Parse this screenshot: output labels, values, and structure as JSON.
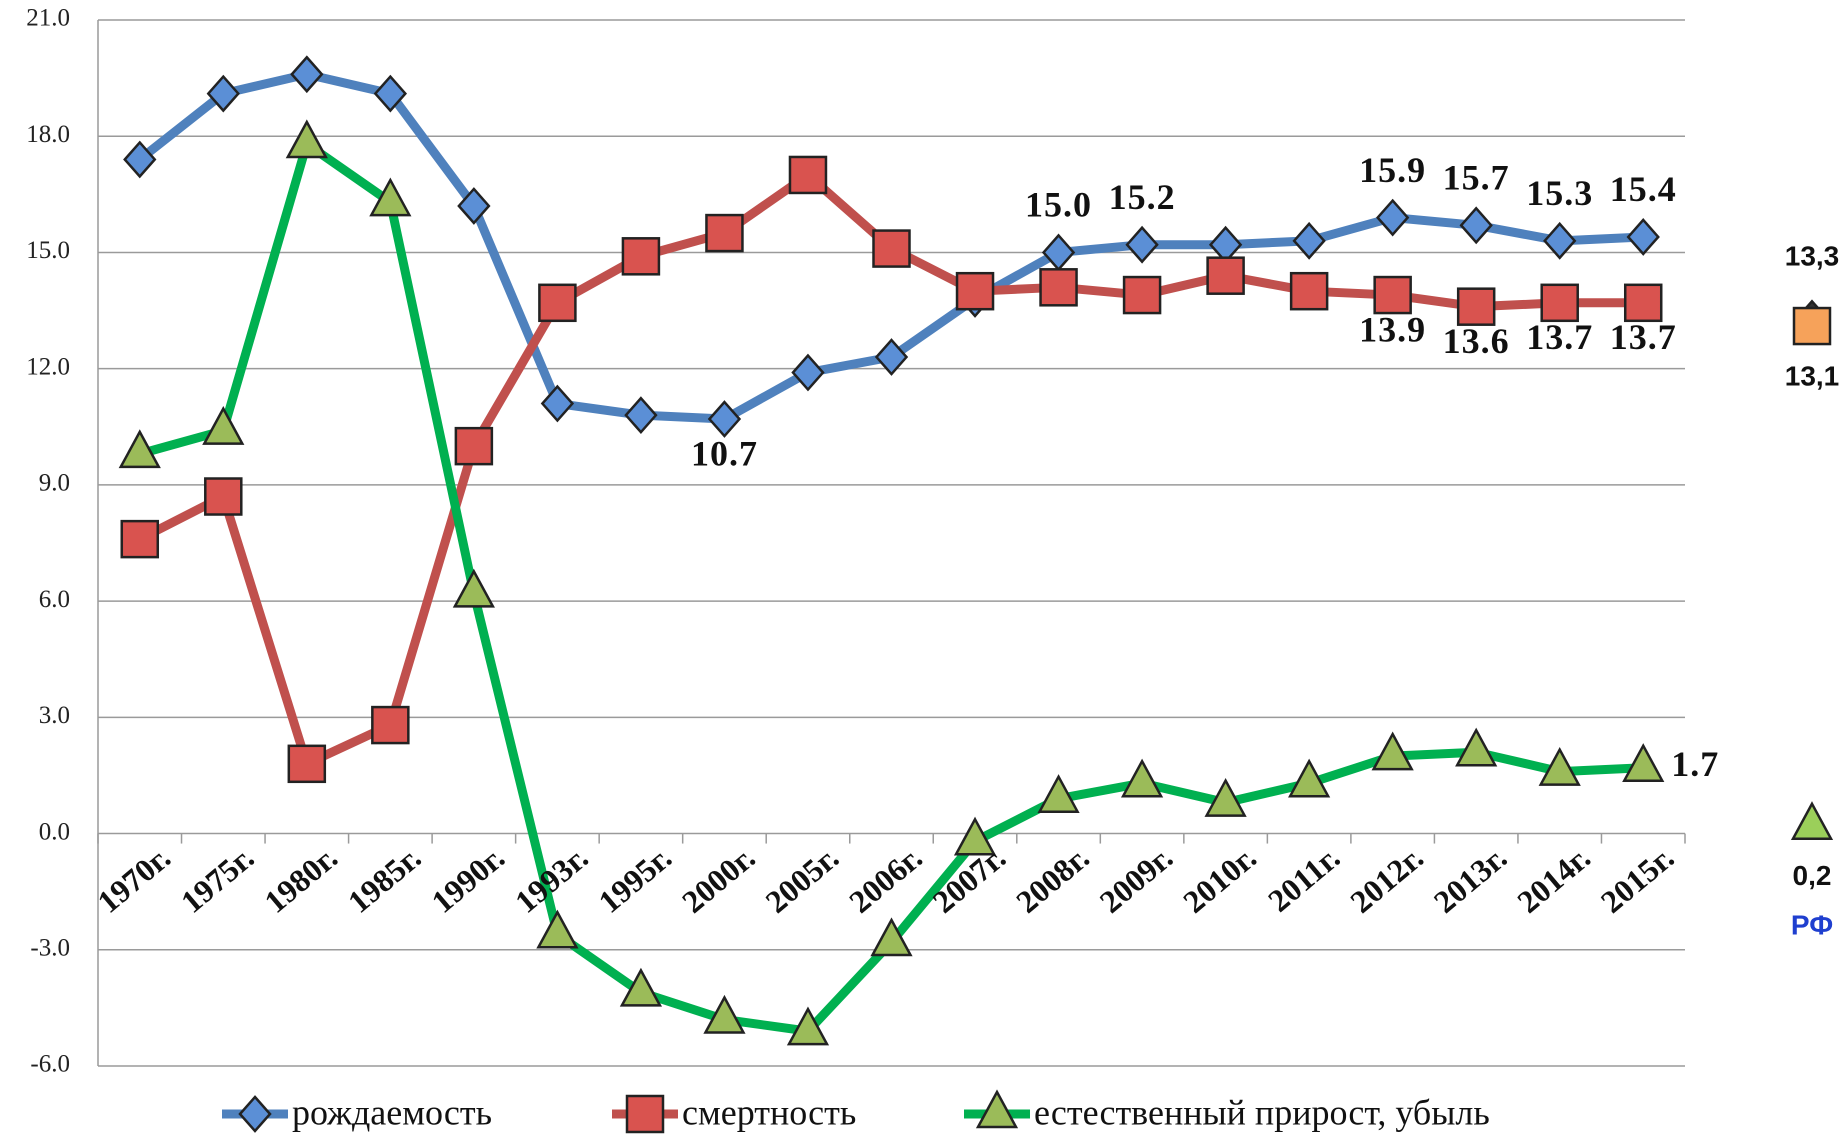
{
  "chart_data": {
    "type": "line",
    "categories": [
      "1970г.",
      "1975г.",
      "1980г.",
      "1985г.",
      "1990г.",
      "1993г.",
      "1995г.",
      "2000г.",
      "2005г.",
      "2006г.",
      "2007г.",
      "2008г.",
      "2009г.",
      "2010г.",
      "2011г.",
      "2012г.",
      "2013г.",
      "2014г.",
      "2015г."
    ],
    "series": [
      {
        "name": "рождаемость",
        "color": "#4f81bd",
        "marker_color": "#5b8fd6",
        "marker": "diamond",
        "values": [
          17.4,
          19.1,
          19.6,
          19.1,
          16.2,
          11.1,
          10.8,
          10.7,
          11.9,
          12.3,
          13.8,
          15.0,
          15.2,
          15.2,
          15.3,
          15.9,
          15.7,
          15.3,
          15.4
        ],
        "value_labels": [
          null,
          null,
          null,
          null,
          null,
          null,
          null,
          "10.7",
          null,
          null,
          null,
          "15.0",
          "15.2",
          null,
          null,
          "15.9",
          "15.7",
          "15.3",
          "15.4"
        ]
      },
      {
        "name": "смертность",
        "color": "#c0504d",
        "marker_color": "#d9534f",
        "marker": "square",
        "values": [
          7.6,
          8.7,
          1.8,
          2.8,
          10.0,
          13.7,
          14.9,
          15.5,
          17.0,
          15.1,
          14.0,
          14.1,
          13.9,
          14.4,
          14.0,
          13.9,
          13.6,
          13.7,
          13.7
        ],
        "value_labels": [
          null,
          null,
          null,
          null,
          null,
          null,
          null,
          null,
          null,
          null,
          null,
          null,
          null,
          null,
          null,
          "13.9",
          "13.6",
          "13.7",
          "13.7"
        ]
      },
      {
        "name": "естественный прирост, убыль",
        "color": "#00b050",
        "marker_color": "#9bbb59",
        "marker": "triangle",
        "values": [
          9.8,
          10.4,
          17.8,
          16.3,
          6.2,
          -2.6,
          -4.1,
          -4.8,
          -5.1,
          -2.8,
          -0.2,
          0.9,
          1.3,
          0.8,
          1.3,
          2.0,
          2.1,
          1.6,
          1.7
        ],
        "value_labels": [
          null,
          null,
          null,
          null,
          null,
          null,
          null,
          null,
          null,
          null,
          null,
          null,
          null,
          null,
          null,
          null,
          null,
          null,
          "1.7"
        ]
      }
    ],
    "ylim": [
      -6,
      21
    ],
    "yticks": [
      {
        "value": -6,
        "label": "-6.0"
      },
      {
        "value": -3,
        "label": "-3.0"
      },
      {
        "value": 0,
        "label": "0.0"
      },
      {
        "value": 3,
        "label": "3.0"
      },
      {
        "value": 6,
        "label": "6.0"
      },
      {
        "value": 9,
        "label": "9.0"
      },
      {
        "value": 12,
        "label": "12.0"
      },
      {
        "value": 15,
        "label": "15.0"
      },
      {
        "value": 18,
        "label": "18.0"
      },
      {
        "value": 21,
        "label": "21.0"
      }
    ],
    "grid": true,
    "legend": "bottom",
    "reference": {
      "label": "РФ",
      "points": [
        {
          "value": 13.3,
          "label": "13,3",
          "marker": "diamond",
          "color": "#333333"
        },
        {
          "value": 13.1,
          "label": "13,1",
          "marker": "square",
          "color": "#f6a25a"
        },
        {
          "value": 0.2,
          "label": "0,2",
          "marker": "triangle",
          "color": "#9bcf5a"
        }
      ]
    }
  }
}
